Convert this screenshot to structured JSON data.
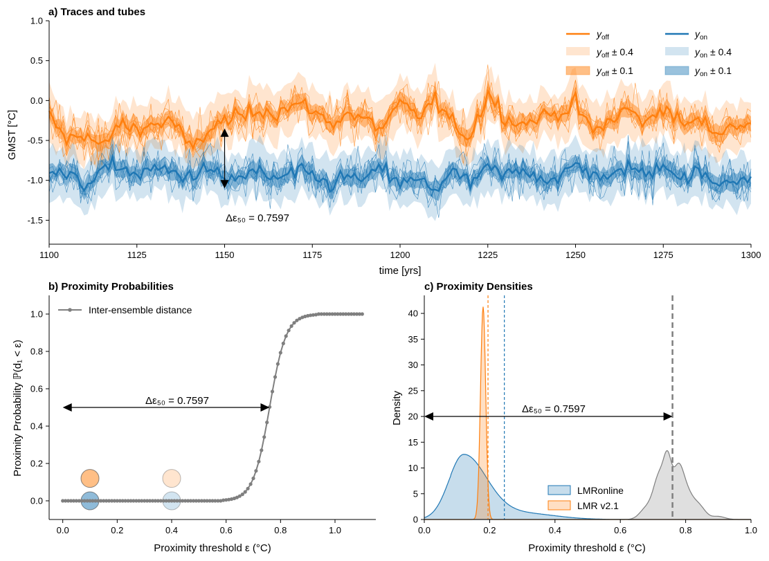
{
  "colors": {
    "off": "#ff7f0e",
    "off_light": "#ffe0c2",
    "off_mid": "#fdb983",
    "on": "#1f77b4",
    "on_light": "#c6dcee",
    "on_mid": "#8fbadf",
    "gray": "#7f7f7f",
    "gray_fill": "#d9d9d9"
  },
  "panels": {
    "a": {
      "title": "a) Traces and tubes",
      "xlabel": "time [yrs]",
      "ylabel": "GMST [°C]",
      "annotation": "Δε₅₀ = 0.7597",
      "legend": [
        "y_off",
        "y_on",
        "y_off ± 0.4",
        "y_on ± 0.4",
        "y_off ± 0.1",
        "y_on ± 0.1"
      ]
    },
    "b": {
      "title": "b) Proximity Probabilities",
      "xlabel": "Proximity threshold ε (°C)",
      "ylabel": "Proximity Probability ℙ(d₁ < ε)",
      "annotation": "Δε₅₀ = 0.7597",
      "legend_label": "Inter-ensemble distance"
    },
    "c": {
      "title": "c) Proximity Densities",
      "xlabel": "Proximity threshold ε (°C)",
      "ylabel": "Density",
      "annotation": "Δε₅₀ = 0.7597",
      "legend": [
        "LMRonline",
        "LMR v2.1"
      ]
    }
  },
  "chart_data": [
    {
      "type": "line",
      "panel": "a",
      "title": "a) Traces and tubes",
      "xlabel": "time [yrs]",
      "ylabel": "GMST [°C]",
      "xlim": [
        1100,
        1300
      ],
      "ylim": [
        -1.8,
        1.0
      ],
      "xticks": [
        1100,
        1125,
        1150,
        1175,
        1200,
        1225,
        1250,
        1275,
        1300
      ],
      "yticks": [
        -1.5,
        -1.0,
        -0.5,
        0.0,
        0.5,
        1.0
      ],
      "legend_position": "top-right",
      "series": [
        {
          "name": "y_off",
          "mean_level": -0.3,
          "band_inner": 0.1,
          "band_outer": 0.4,
          "x": [
            1100,
            1105,
            1110,
            1115,
            1120,
            1125,
            1130,
            1135,
            1140,
            1145,
            1150,
            1155,
            1160,
            1165,
            1170,
            1175,
            1180,
            1185,
            1190,
            1195,
            1200,
            1205,
            1210,
            1215,
            1220,
            1225,
            1230,
            1235,
            1240,
            1245,
            1250,
            1255,
            1260,
            1265,
            1270,
            1275,
            1280,
            1285,
            1290,
            1295,
            1300
          ],
          "values": [
            -0.2,
            -0.5,
            -0.4,
            -0.6,
            -0.3,
            -0.35,
            -0.3,
            -0.25,
            -0.6,
            -0.4,
            -0.25,
            -0.2,
            -0.1,
            -0.15,
            -0.05,
            -0.1,
            -0.3,
            -0.15,
            -0.25,
            -0.35,
            -0.05,
            -0.2,
            0.0,
            -0.3,
            -0.45,
            0.1,
            -0.2,
            -0.3,
            -0.2,
            -0.15,
            -0.05,
            -0.4,
            -0.25,
            -0.1,
            -0.3,
            -0.05,
            -0.3,
            -0.25,
            -0.4,
            -0.3,
            -0.3
          ]
        },
        {
          "name": "y_on",
          "mean_level": -0.95,
          "band_inner": 0.1,
          "band_outer": 0.4,
          "x": [
            1100,
            1105,
            1110,
            1115,
            1120,
            1125,
            1130,
            1135,
            1140,
            1145,
            1150,
            1155,
            1160,
            1165,
            1170,
            1175,
            1180,
            1185,
            1190,
            1195,
            1200,
            1205,
            1210,
            1215,
            1220,
            1225,
            1230,
            1235,
            1240,
            1245,
            1250,
            1255,
            1260,
            1265,
            1270,
            1275,
            1280,
            1285,
            1290,
            1295,
            1300
          ],
          "values": [
            -0.85,
            -0.95,
            -1.05,
            -0.9,
            -0.8,
            -0.95,
            -0.85,
            -0.9,
            -0.95,
            -0.85,
            -1.0,
            -0.95,
            -0.9,
            -1.0,
            -0.9,
            -0.95,
            -1.05,
            -0.95,
            -1.0,
            -0.85,
            -1.05,
            -1.0,
            -1.1,
            -0.9,
            -1.05,
            -0.85,
            -0.95,
            -0.85,
            -0.95,
            -1.0,
            -0.8,
            -0.9,
            -1.0,
            -0.8,
            -0.95,
            -0.75,
            -1.0,
            -0.9,
            -1.05,
            -0.95,
            -1.0
          ]
        }
      ],
      "annotation_arrow": {
        "x": 1150,
        "y_from": -0.35,
        "y_to": -1.1
      },
      "annotation_text": "Δε₅₀ = 0.7597"
    },
    {
      "type": "line",
      "panel": "b",
      "title": "b) Proximity Probabilities",
      "xlabel": "Proximity threshold ε (°C)",
      "ylabel": "Proximity Probability ℙ(d₁ < ε)",
      "xlim": [
        -0.05,
        1.15
      ],
      "ylim": [
        -0.1,
        1.1
      ],
      "xticks": [
        0.0,
        0.2,
        0.4,
        0.6,
        0.8,
        1.0
      ],
      "yticks": [
        0.0,
        0.2,
        0.4,
        0.6,
        0.8,
        1.0
      ],
      "series": [
        {
          "name": "Inter-ensemble distance",
          "midpoint": 0.7597,
          "scale": 0.03
        }
      ],
      "circles": [
        {
          "x": 0.1,
          "y": 0.12,
          "color": "off",
          "alpha": 0.5
        },
        {
          "x": 0.1,
          "y": 0.0,
          "color": "on",
          "alpha": 0.5
        },
        {
          "x": 0.4,
          "y": 0.12,
          "color": "off",
          "alpha": 0.2
        },
        {
          "x": 0.4,
          "y": 0.0,
          "color": "on",
          "alpha": 0.2
        }
      ],
      "annotation_arrow": {
        "y": 0.5,
        "x_from": 0.0,
        "x_to": 0.7597
      },
      "annotation_text": "Δε₅₀ = 0.7597",
      "legend_position": "top-left"
    },
    {
      "type": "area",
      "panel": "c",
      "title": "c) Proximity Densities",
      "xlabel": "Proximity threshold ε (°C)",
      "ylabel": "Density",
      "xlim": [
        0.0,
        1.0
      ],
      "ylim": [
        0,
        43.5
      ],
      "xticks": [
        0.0,
        0.2,
        0.4,
        0.6,
        0.8,
        1.0
      ],
      "yticks": [
        0,
        5,
        10,
        15,
        20,
        25,
        30,
        35,
        40
      ],
      "series": [
        {
          "name": "LMRonline",
          "peak_x": 0.12,
          "peak_y": 12.4,
          "mean_line": 0.245
        },
        {
          "name": "LMR v2.1",
          "peak_x": 0.18,
          "peak_y": 41.3,
          "mean_line": 0.195
        },
        {
          "name": "Inter-ensemble distance",
          "peak_x": 0.735,
          "peak_y": 9.6,
          "mean_line": 0.7597
        }
      ],
      "annotation_arrow": {
        "y": 20,
        "x_from": 0.0,
        "x_to": 0.7597
      },
      "annotation_text": "Δε₅₀ = 0.7597",
      "legend_position": "lower-center"
    }
  ]
}
